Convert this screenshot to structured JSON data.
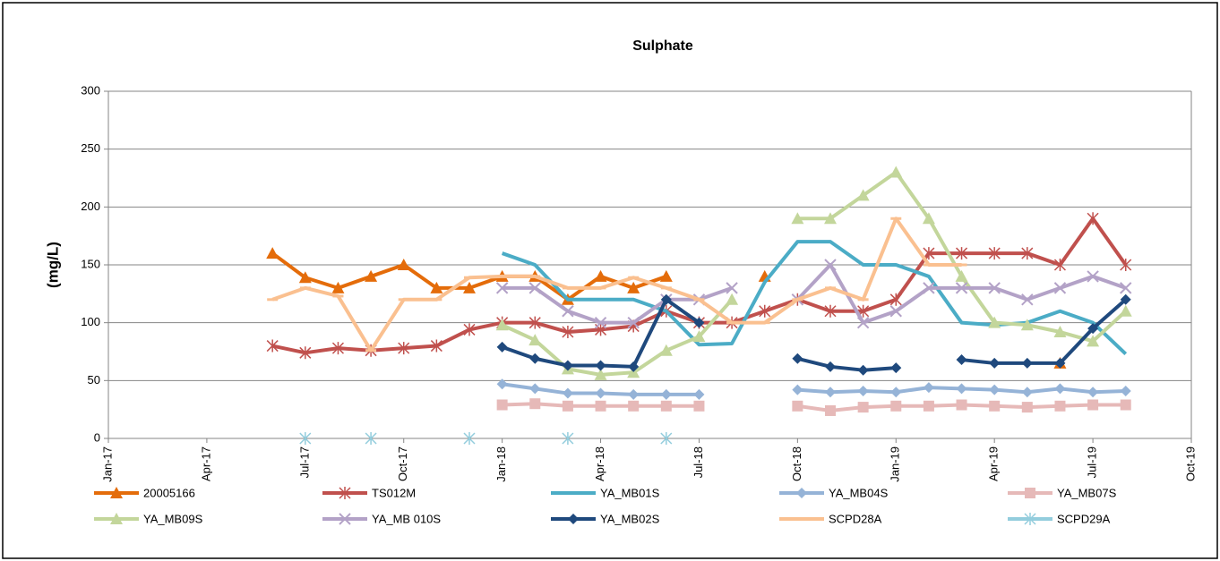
{
  "chart_data": {
    "type": "line",
    "title": "Sulphate",
    "y_label": "(mg/L)",
    "xlim": [
      "Jan-17",
      "Oct-19"
    ],
    "xticks": [
      "Jan-17",
      "Apr-17",
      "Jul-17",
      "Oct-17",
      "Jan-18",
      "Apr-18",
      "Jul-18",
      "Oct-18",
      "Jan-19",
      "Apr-19",
      "Jul-19",
      "Oct-19"
    ],
    "ylim": [
      0,
      300
    ],
    "yticks": [
      0,
      50,
      100,
      150,
      200,
      250,
      300
    ],
    "grid": true,
    "x": [
      "Jun-17",
      "Jul-17",
      "Aug-17",
      "Sep-17",
      "Oct-17",
      "Nov-17",
      "Dec-17",
      "Jan-18",
      "Feb-18",
      "Mar-18",
      "Apr-18",
      "May-18",
      "Jun-18",
      "Jul-18",
      "Aug-18",
      "Sep-18",
      "Oct-18",
      "Nov-18",
      "Dec-18",
      "Jan-19",
      "Feb-19",
      "Mar-19",
      "Apr-19",
      "May-19",
      "Jun-19",
      "Jul-19",
      "Aug-19"
    ],
    "series": [
      {
        "name": "20005166",
        "color": "#e46c0a",
        "marker": "triangle",
        "values": [
          160,
          139,
          130,
          140,
          150,
          130,
          130,
          140,
          140,
          120,
          140,
          130,
          140,
          null,
          null,
          140,
          null,
          null,
          null,
          null,
          null,
          null,
          null,
          null,
          65,
          null,
          null
        ]
      },
      {
        "name": "TS012M",
        "color": "#c0504d",
        "marker": "star",
        "values": [
          80,
          74,
          78,
          76,
          78,
          80,
          94,
          100,
          100,
          92,
          94,
          97,
          110,
          100,
          100,
          110,
          120,
          110,
          110,
          120,
          160,
          160,
          160,
          160,
          150,
          190,
          150
        ]
      },
      {
        "name": "YA_MB01S",
        "color": "#4bacc6",
        "marker": "none",
        "values": [
          null,
          null,
          null,
          null,
          null,
          null,
          null,
          160,
          150,
          120,
          120,
          120,
          110,
          81,
          82,
          135,
          170,
          170,
          150,
          150,
          140,
          100,
          98,
          100,
          110,
          100,
          73
        ]
      },
      {
        "name": "YA_MB04S",
        "color": "#95b3d7",
        "marker": "diamond",
        "values": [
          null,
          null,
          null,
          null,
          null,
          null,
          null,
          47,
          43,
          39,
          39,
          38,
          38,
          38,
          null,
          null,
          42,
          40,
          41,
          40,
          44,
          43,
          42,
          40,
          43,
          40,
          41
        ]
      },
      {
        "name": "YA_MB07S",
        "color": "#e6b9b8",
        "marker": "square",
        "values": [
          null,
          null,
          null,
          null,
          null,
          null,
          null,
          29,
          30,
          28,
          28,
          28,
          28,
          28,
          null,
          null,
          28,
          24,
          27,
          28,
          28,
          29,
          28,
          27,
          28,
          29,
          29
        ]
      },
      {
        "name": "YA_MB09S",
        "color": "#c3d69b",
        "marker": "triangle",
        "values": [
          null,
          null,
          null,
          null,
          null,
          null,
          null,
          98,
          85,
          60,
          55,
          57,
          76,
          88,
          120,
          null,
          190,
          190,
          210,
          230,
          190,
          140,
          100,
          98,
          92,
          84,
          110
        ]
      },
      {
        "name": "YA_MB 010S",
        "color": "#b3a2c7",
        "marker": "x",
        "values": [
          null,
          null,
          null,
          null,
          null,
          null,
          null,
          130,
          130,
          110,
          100,
          100,
          120,
          120,
          130,
          null,
          120,
          150,
          100,
          110,
          130,
          130,
          130,
          120,
          130,
          140,
          130
        ]
      },
      {
        "name": "YA_MB02S",
        "color": "#1f497d",
        "marker": "diamond",
        "values": [
          null,
          null,
          null,
          null,
          null,
          null,
          null,
          79,
          69,
          63,
          63,
          62,
          120,
          100,
          null,
          null,
          69,
          62,
          59,
          61,
          null,
          68,
          65,
          65,
          65,
          95,
          120
        ]
      },
      {
        "name": "SCPD28A",
        "color": "#fac090",
        "marker": "dash",
        "values": [
          120,
          130,
          123,
          76,
          120,
          120,
          139,
          140,
          140,
          130,
          130,
          139,
          130,
          120,
          100,
          100,
          120,
          130,
          120,
          190,
          150,
          150,
          null,
          null,
          null,
          null,
          null
        ]
      },
      {
        "name": "SCPD29A",
        "color": "#93cddd",
        "marker": "star",
        "values": [
          null,
          0,
          null,
          0,
          null,
          null,
          0,
          null,
          null,
          0,
          null,
          null,
          0,
          null,
          null,
          null,
          null,
          null,
          null,
          null,
          null,
          null,
          null,
          null,
          null,
          null,
          null
        ]
      }
    ]
  }
}
